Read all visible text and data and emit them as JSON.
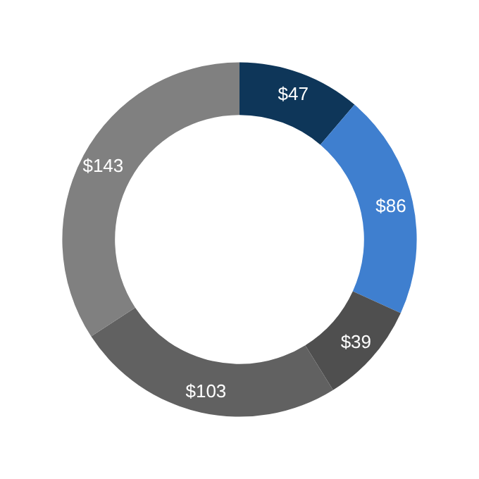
{
  "chart_data": {
    "type": "donut",
    "categories": [
      null,
      null,
      null,
      null,
      null
    ],
    "values": [
      47,
      86,
      39,
      103,
      143
    ],
    "value_labels": [
      "$47",
      "$86",
      "$39",
      "$103",
      "$143"
    ],
    "colors": [
      "#0e3659",
      "#3f7fcf",
      "#4f4f4f",
      "#616161",
      "#808080"
    ]
  }
}
